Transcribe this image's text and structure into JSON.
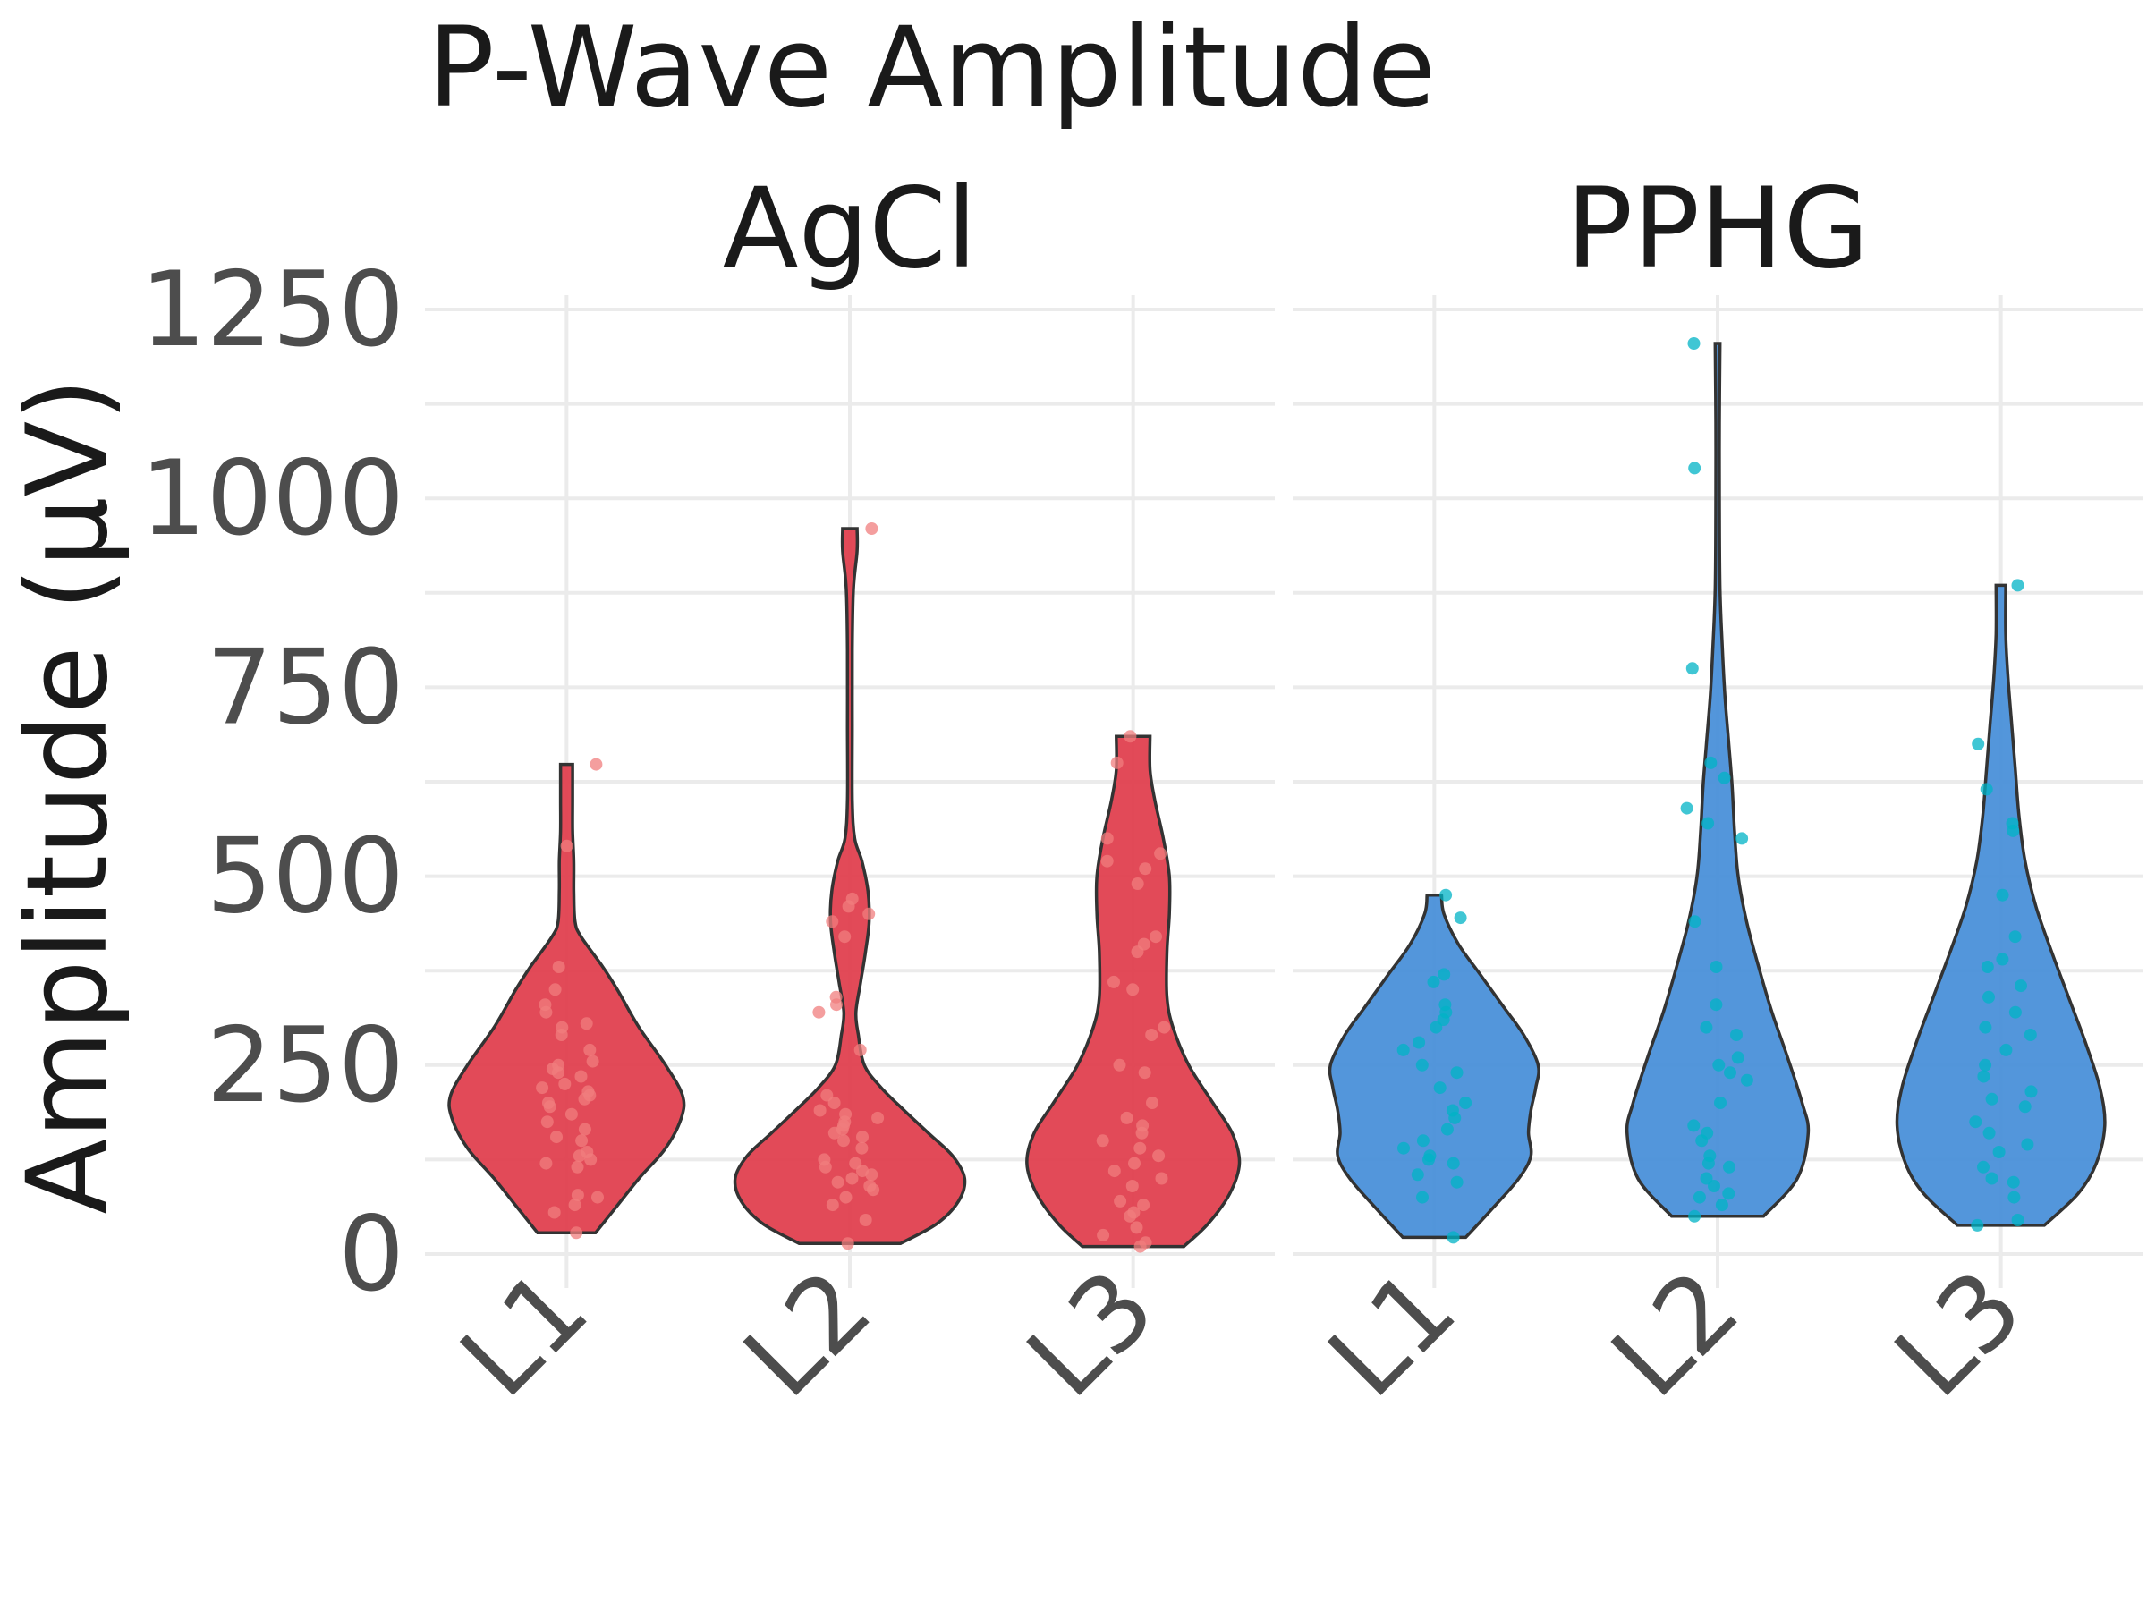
{
  "chart_data": {
    "type": "violin",
    "title": "P-Wave Amplitude",
    "ylabel": "Amplitude (µV)",
    "xlabel": "",
    "ylim": [
      -40,
      1270
    ],
    "yticks": [
      0,
      250,
      500,
      750,
      1000,
      1250
    ],
    "categories": [
      "L1",
      "L2",
      "L3"
    ],
    "grid": true,
    "legend": "none",
    "panels": [
      {
        "name": "AgCl",
        "fill_color": "#e0404f",
        "point_color": "#f07d7d",
        "groups": [
          {
            "category": "L1",
            "min": 28,
            "max": 648,
            "profile": [
              [
                28,
                0.24
              ],
              [
                60,
                0.4
              ],
              [
                100,
                0.6
              ],
              [
                140,
                0.82
              ],
              [
                180,
                0.95
              ],
              [
                210,
                0.96
              ],
              [
                250,
                0.82
              ],
              [
                300,
                0.6
              ],
              [
                350,
                0.42
              ],
              [
                380,
                0.3
              ],
              [
                420,
                0.12
              ],
              [
                440,
                0.07
              ],
              [
                480,
                0.06
              ],
              [
                520,
                0.06
              ],
              [
                560,
                0.05
              ],
              [
                600,
                0.05
              ],
              [
                648,
                0.05
              ]
            ],
            "points": [
              28,
              55,
              65,
              75,
              78,
              115,
              120,
              125,
              130,
              135,
              150,
              155,
              165,
              175,
              185,
              195,
              200,
              205,
              210,
              215,
              220,
              225,
              235,
              240,
              245,
              250,
              255,
              270,
              290,
              300,
              305,
              320,
              330,
              350,
              380,
              540,
              648
            ]
          },
          {
            "category": "L2",
            "min": 14,
            "max": 960,
            "profile": [
              [
                14,
                0.42
              ],
              [
                40,
                0.72
              ],
              [
                70,
                0.9
              ],
              [
                100,
                0.95
              ],
              [
                130,
                0.85
              ],
              [
                160,
                0.65
              ],
              [
                190,
                0.45
              ],
              [
                220,
                0.26
              ],
              [
                250,
                0.12
              ],
              [
                290,
                0.07
              ],
              [
                320,
                0.05
              ],
              [
                360,
                0.09
              ],
              [
                400,
                0.13
              ],
              [
                440,
                0.16
              ],
              [
                480,
                0.15
              ],
              [
                520,
                0.1
              ],
              [
                550,
                0.04
              ],
              [
                600,
                0.02
              ],
              [
                700,
                0.02
              ],
              [
                800,
                0.02
              ],
              [
                880,
                0.03
              ],
              [
                930,
                0.06
              ],
              [
                960,
                0.06
              ]
            ],
            "points": [
              14,
              45,
              65,
              75,
              85,
              90,
              95,
              100,
              105,
              110,
              115,
              120,
              125,
              140,
              150,
              155,
              160,
              165,
              170,
              175,
              180,
              185,
              190,
              200,
              210,
              270,
              320,
              330,
              340,
              420,
              440,
              450,
              460,
              470,
              960
            ]
          },
          {
            "category": "L3",
            "min": 10,
            "max": 685,
            "profile": [
              [
                10,
                0.42
              ],
              [
                40,
                0.62
              ],
              [
                80,
                0.8
              ],
              [
                120,
                0.88
              ],
              [
                160,
                0.82
              ],
              [
                200,
                0.66
              ],
              [
                250,
                0.46
              ],
              [
                300,
                0.33
              ],
              [
                340,
                0.28
              ],
              [
                400,
                0.28
              ],
              [
                450,
                0.3
              ],
              [
                500,
                0.3
              ],
              [
                550,
                0.25
              ],
              [
                600,
                0.18
              ],
              [
                640,
                0.14
              ],
              [
                685,
                0.14
              ]
            ],
            "points": [
              10,
              15,
              25,
              35,
              50,
              55,
              65,
              70,
              90,
              100,
              110,
              120,
              130,
              140,
              150,
              160,
              170,
              180,
              200,
              240,
              250,
              290,
              300,
              350,
              360,
              400,
              410,
              420,
              490,
              510,
              520,
              530,
              550,
              650,
              685
            ]
          }
        ]
      },
      {
        "name": "PPHG",
        "fill_color": "#4a90d9",
        "point_color": "#00b3c6",
        "groups": [
          {
            "category": "L1",
            "min": 22,
            "max": 475,
            "profile": [
              [
                22,
                0.26
              ],
              [
                60,
                0.48
              ],
              [
                100,
                0.7
              ],
              [
                130,
                0.8
              ],
              [
                160,
                0.78
              ],
              [
                190,
                0.8
              ],
              [
                220,
                0.84
              ],
              [
                250,
                0.86
              ],
              [
                290,
                0.74
              ],
              [
                330,
                0.56
              ],
              [
                370,
                0.38
              ],
              [
                410,
                0.2
              ],
              [
                450,
                0.08
              ],
              [
                475,
                0.06
              ]
            ],
            "points": [
              22,
              75,
              95,
              105,
              120,
              125,
              130,
              140,
              150,
              165,
              180,
              190,
              200,
              220,
              240,
              250,
              270,
              280,
              300,
              310,
              320,
              330,
              360,
              370,
              445,
              475
            ]
          },
          {
            "category": "L2",
            "min": 50,
            "max": 1205,
            "profile": [
              [
                50,
                0.38
              ],
              [
                100,
                0.66
              ],
              [
                160,
                0.75
              ],
              [
                200,
                0.7
              ],
              [
                260,
                0.58
              ],
              [
                320,
                0.45
              ],
              [
                380,
                0.34
              ],
              [
                440,
                0.24
              ],
              [
                500,
                0.17
              ],
              [
                560,
                0.14
              ],
              [
                620,
                0.12
              ],
              [
                680,
                0.09
              ],
              [
                740,
                0.06
              ],
              [
                800,
                0.04
              ],
              [
                880,
                0.02
              ],
              [
                1000,
                0.015
              ],
              [
                1100,
                0.015
              ],
              [
                1205,
                0.02
              ]
            ],
            "points": [
              50,
              65,
              75,
              80,
              90,
              100,
              115,
              120,
              130,
              150,
              160,
              170,
              200,
              230,
              240,
              250,
              260,
              290,
              300,
              330,
              380,
              440,
              550,
              570,
              590,
              630,
              650,
              775,
              1040,
              1205
            ]
          },
          {
            "category": "L3",
            "min": 38,
            "max": 885,
            "profile": [
              [
                38,
                0.36
              ],
              [
                80,
                0.64
              ],
              [
                120,
                0.79
              ],
              [
                170,
                0.86
              ],
              [
                220,
                0.82
              ],
              [
                280,
                0.7
              ],
              [
                340,
                0.56
              ],
              [
                400,
                0.42
              ],
              [
                460,
                0.29
              ],
              [
                520,
                0.2
              ],
              [
                580,
                0.15
              ],
              [
                640,
                0.12
              ],
              [
                700,
                0.09
              ],
              [
                760,
                0.06
              ],
              [
                820,
                0.04
              ],
              [
                885,
                0.04
              ]
            ],
            "points": [
              38,
              45,
              75,
              95,
              100,
              115,
              135,
              145,
              160,
              175,
              195,
              205,
              215,
              235,
              250,
              270,
              290,
              300,
              320,
              340,
              355,
              380,
              390,
              420,
              475,
              560,
              570,
              615,
              675,
              885
            ]
          }
        ]
      }
    ]
  }
}
